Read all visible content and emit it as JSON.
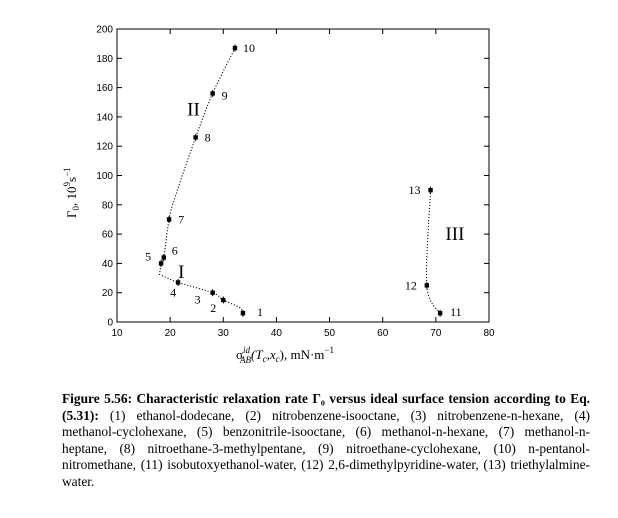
{
  "chart_data": {
    "type": "scatter",
    "xlabel_main": "σ",
    "xlabel_sup": "id",
    "xlabel_sub": "AB",
    "xlabel_rest": "(T",
    "xlabel_sub2": "c",
    "xlabel_mid": ",x",
    "xlabel_sub3": "c",
    "xlabel_end": "), mN·m",
    "xlabel_exp": "−1",
    "ylabel_main": "Γ",
    "ylabel_sub": "0",
    "ylabel_rest": ", 10",
    "ylabel_sup1": "9",
    "ylabel_s": "s",
    "ylabel_sup2": "−1",
    "xlim": [
      10,
      80
    ],
    "ylim": [
      0,
      200
    ],
    "xticks": [
      "10",
      "20",
      "30",
      "40",
      "50",
      "60",
      "70",
      "80"
    ],
    "yticks": [
      "0",
      "20",
      "40",
      "60",
      "80",
      "100",
      "120",
      "140",
      "160",
      "180",
      "200"
    ],
    "points": [
      {
        "label": "1",
        "x": 33.7,
        "y": 6
      },
      {
        "label": "2",
        "x": 30.0,
        "y": 15
      },
      {
        "label": "3",
        "x": 28.0,
        "y": 20
      },
      {
        "label": "4",
        "x": 21.5,
        "y": 27
      },
      {
        "label": "5",
        "x": 18.3,
        "y": 40
      },
      {
        "label": "6",
        "x": 18.8,
        "y": 44
      },
      {
        "label": "7",
        "x": 19.8,
        "y": 70
      },
      {
        "label": "8",
        "x": 24.8,
        "y": 126
      },
      {
        "label": "9",
        "x": 28.0,
        "y": 156
      },
      {
        "label": "10",
        "x": 32.2,
        "y": 187
      },
      {
        "label": "11",
        "x": 70.8,
        "y": 6
      },
      {
        "label": "12",
        "x": 68.3,
        "y": 25
      },
      {
        "label": "13",
        "x": 69.0,
        "y": 90
      }
    ],
    "groups": [
      {
        "name": "I",
        "x": 21.5,
        "y": 30
      },
      {
        "name": "II",
        "x": 23.2,
        "y": 141
      },
      {
        "name": "III",
        "x": 71.8,
        "y": 56
      }
    ],
    "curves": [
      {
        "id": "I",
        "x": [
          33.7,
          33.0,
          30.0,
          28.0,
          21.5,
          18.3
        ],
        "y": [
          6,
          10,
          15,
          20,
          27,
          32
        ]
      },
      {
        "id": "II",
        "x": [
          18.0,
          18.3,
          18.8,
          19.8,
          21.0,
          24.8,
          28.0,
          32.2
        ],
        "y": [
          32,
          40,
          44,
          70,
          86,
          126,
          156,
          187
        ]
      },
      {
        "id": "III",
        "x": [
          70.8,
          68.3,
          69.0
        ],
        "y": [
          6,
          25,
          90
        ]
      }
    ]
  },
  "caption": {
    "bold": "Figure 5.56: Characteristic relaxation rate Γ₀ versus ideal surface tension according to Eq.(5.31):",
    "text": " (1) ethanol-dodecane, (2) nitrobenzene-isooctane, (3) nitrobenzene-n-hexane, (4) methanol-cyclohexane, (5) benzonitrile-isooctane, (6) methanol-n-hexane, (7) methanol-n-heptane, (8) nitroethane-3-methylpentane, (9) nitroethane-cyclohexane, (10) n-pentanol-nitromethane, (11) isobutoxyethanol-water, (12) 2,6-dimethylpyridine-water, (13) triethylalmine-water."
  }
}
